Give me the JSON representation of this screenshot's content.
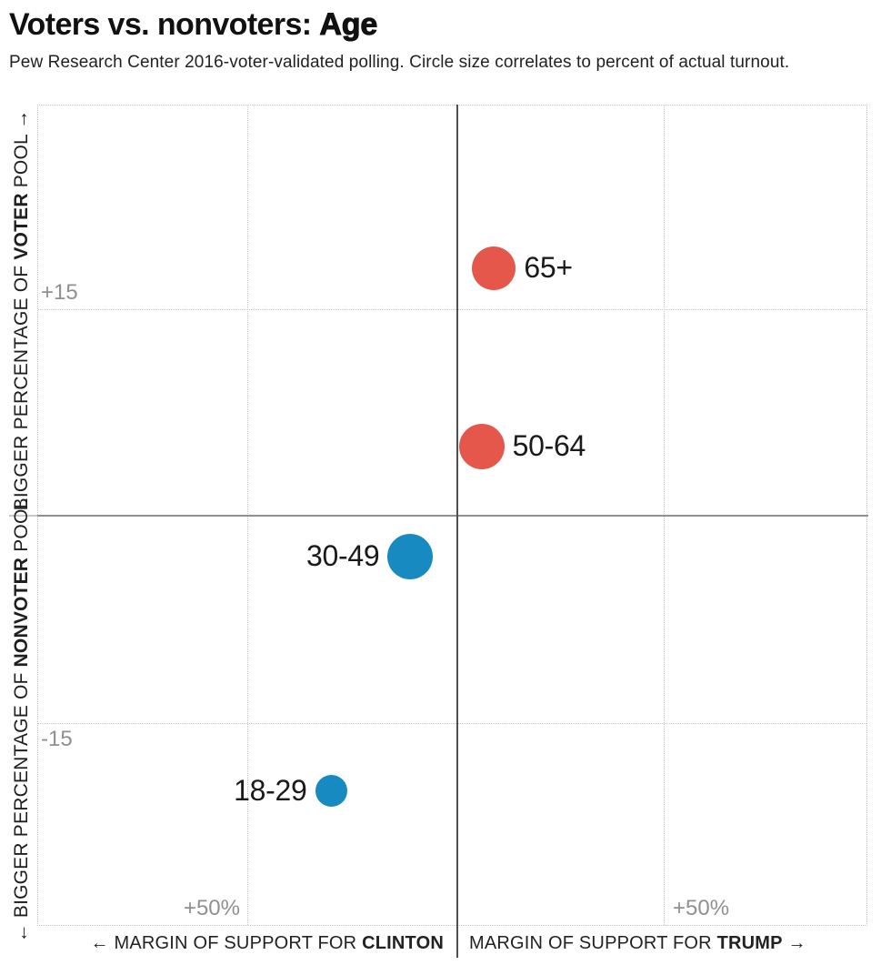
{
  "header": {
    "title_main": "Voters vs. nonvoters: ",
    "title_emphasis": "Age",
    "subtitle": "Pew Research Center 2016-voter-validated polling. Circle size correlates to percent of actual turnout."
  },
  "chart_data": {
    "type": "scatter",
    "title": "Voters vs. nonvoters: Age",
    "subtitle": "Pew Research Center 2016-voter-validated polling. Circle size correlates to percent of actual turnout.",
    "grid": "dotted",
    "x_axis": {
      "description": "Margin of support, percent; left half = Clinton lead, right half = Trump lead",
      "tick_left": "+50%",
      "tick_right": "+50%",
      "gridlines_at_pct": [
        -50,
        50
      ],
      "range_pct": [
        -100,
        100
      ],
      "label_left": {
        "pre": "← MARGIN OF SUPPORT FOR ",
        "bold": "CLINTON",
        "post": ""
      },
      "label_right": {
        "pre": "MARGIN OF SUPPORT FOR ",
        "bold": "TRUMP",
        "post": " →"
      }
    },
    "y_axis": {
      "description": "Percentage-point difference between share of voter pool and share of nonvoter pool",
      "tick_top": "+15",
      "tick_bottom": "-15",
      "gridlines_at": [
        15,
        -15
      ],
      "range": [
        -30,
        30
      ],
      "label_top": {
        "pre": "BIGGER PERCENTAGE OF ",
        "bold": "VOTER",
        "post": " POOL →"
      },
      "label_bottom": {
        "pre": "← BIGGER PERCENTAGE OF ",
        "bold": "NONVOTER",
        "post": " POOL"
      }
    },
    "points": [
      {
        "label": "65+",
        "margin_pct": 9,
        "pool_pts": 18,
        "radius_px": 24,
        "color": "#e5574a",
        "label_side": "right"
      },
      {
        "label": "50-64",
        "margin_pct": 6,
        "pool_pts": 5,
        "radius_px": 25,
        "color": "#e5574a",
        "label_side": "right"
      },
      {
        "label": "30-49",
        "margin_pct": -11,
        "pool_pts": -3,
        "radius_px": 25,
        "color": "#178ac1",
        "label_side": "left"
      },
      {
        "label": "18-29",
        "margin_pct": -30,
        "pool_pts": -20,
        "radius_px": 17.5,
        "color": "#178ac1",
        "label_side": "left"
      }
    ],
    "colors": {
      "lean_trump_red": "#e5574a",
      "lean_clinton_blue": "#178ac1"
    }
  }
}
